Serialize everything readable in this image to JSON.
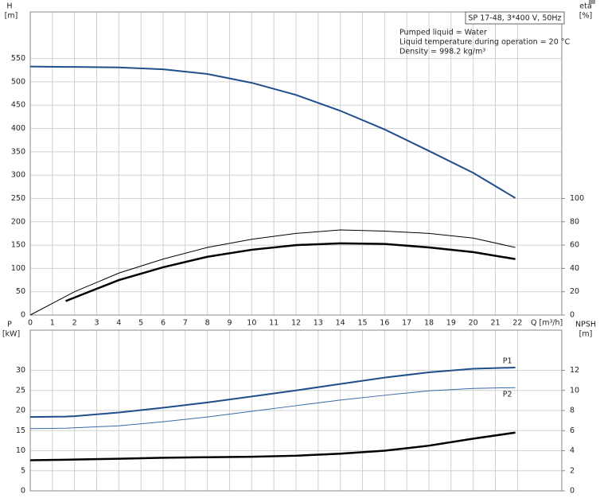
{
  "chart_data": [
    {
      "type": "line",
      "title": "SP 17-48, 3*400 V, 50Hz",
      "annotations": [
        "Pumped liquid = Water",
        "Liquid temperature during operation = 20 °C",
        "Density = 998.2 kg/m³"
      ],
      "y_label": "H",
      "y_unit": "[m]",
      "y2_label": "eta",
      "y2_unit": "[%]",
      "x_label": "Q [m³/h]",
      "x": [
        0,
        1.6,
        2,
        4,
        6,
        8,
        10,
        12,
        14,
        16,
        18,
        20,
        21.9
      ],
      "xlim": [
        0,
        24
      ],
      "xticks": [
        0,
        1,
        2,
        3,
        4,
        5,
        6,
        7,
        8,
        9,
        10,
        11,
        12,
        13,
        14,
        15,
        16,
        17,
        18,
        19,
        20,
        21,
        22
      ],
      "ylim": [
        0,
        650
      ],
      "yticks": [
        0,
        50,
        100,
        150,
        200,
        250,
        300,
        350,
        400,
        450,
        500,
        550
      ],
      "y2lim": [
        0,
        260
      ],
      "y2ticks": [
        0,
        20,
        40,
        60,
        80,
        100
      ],
      "grid": true,
      "series": [
        {
          "color": "#1f4e8c",
          "width": 2,
          "values": [
            533,
            532,
            532,
            531,
            527,
            517,
            498,
            472,
            438,
            398,
            352,
            305,
            251
          ]
        },
        {
          "color": "#000000",
          "width": 1,
          "axis": "y2",
          "values": [
            0,
            16,
            20,
            36,
            48,
            58,
            65,
            70,
            73,
            72,
            70,
            66,
            58
          ]
        },
        {
          "color": "#000000",
          "width": 2.5,
          "axis": "y2",
          "values": [
            null,
            12,
            15,
            30,
            41,
            50,
            56,
            60,
            61.5,
            61,
            58,
            54,
            48
          ]
        }
      ]
    },
    {
      "type": "line",
      "y_label": "P",
      "y_unit": "[kW]",
      "y2_label": "NPSH",
      "y2_unit": "[m]",
      "x": [
        0,
        1.6,
        2,
        4,
        6,
        8,
        10,
        12,
        14,
        16,
        18,
        20,
        21.9
      ],
      "xlim": [
        0,
        24
      ],
      "ylim": [
        0,
        40
      ],
      "yticks": [
        0,
        5,
        10,
        15,
        20,
        25,
        30
      ],
      "y2lim": [
        0,
        16
      ],
      "y2ticks": [
        0,
        2,
        4,
        6,
        8,
        10,
        12
      ],
      "grid": true,
      "series": [
        {
          "name": "P1",
          "color": "#1f4e8c",
          "width": 2,
          "values": [
            18.4,
            18.5,
            18.6,
            19.5,
            20.7,
            22,
            23.5,
            25,
            26.6,
            28.2,
            29.5,
            30.4,
            30.7
          ]
        },
        {
          "name": "P2",
          "color": "#3a6aa8",
          "width": 1,
          "values": [
            15.5,
            15.6,
            15.7,
            16.2,
            17.2,
            18.4,
            19.8,
            21.2,
            22.6,
            23.8,
            24.9,
            25.5,
            25.7
          ]
        },
        {
          "color": "#000000",
          "width": 2.5,
          "axis": "y2",
          "values": [
            3.05,
            3.1,
            3.12,
            3.2,
            3.3,
            3.35,
            3.4,
            3.5,
            3.7,
            4.0,
            4.5,
            5.2,
            5.8
          ]
        }
      ]
    }
  ]
}
